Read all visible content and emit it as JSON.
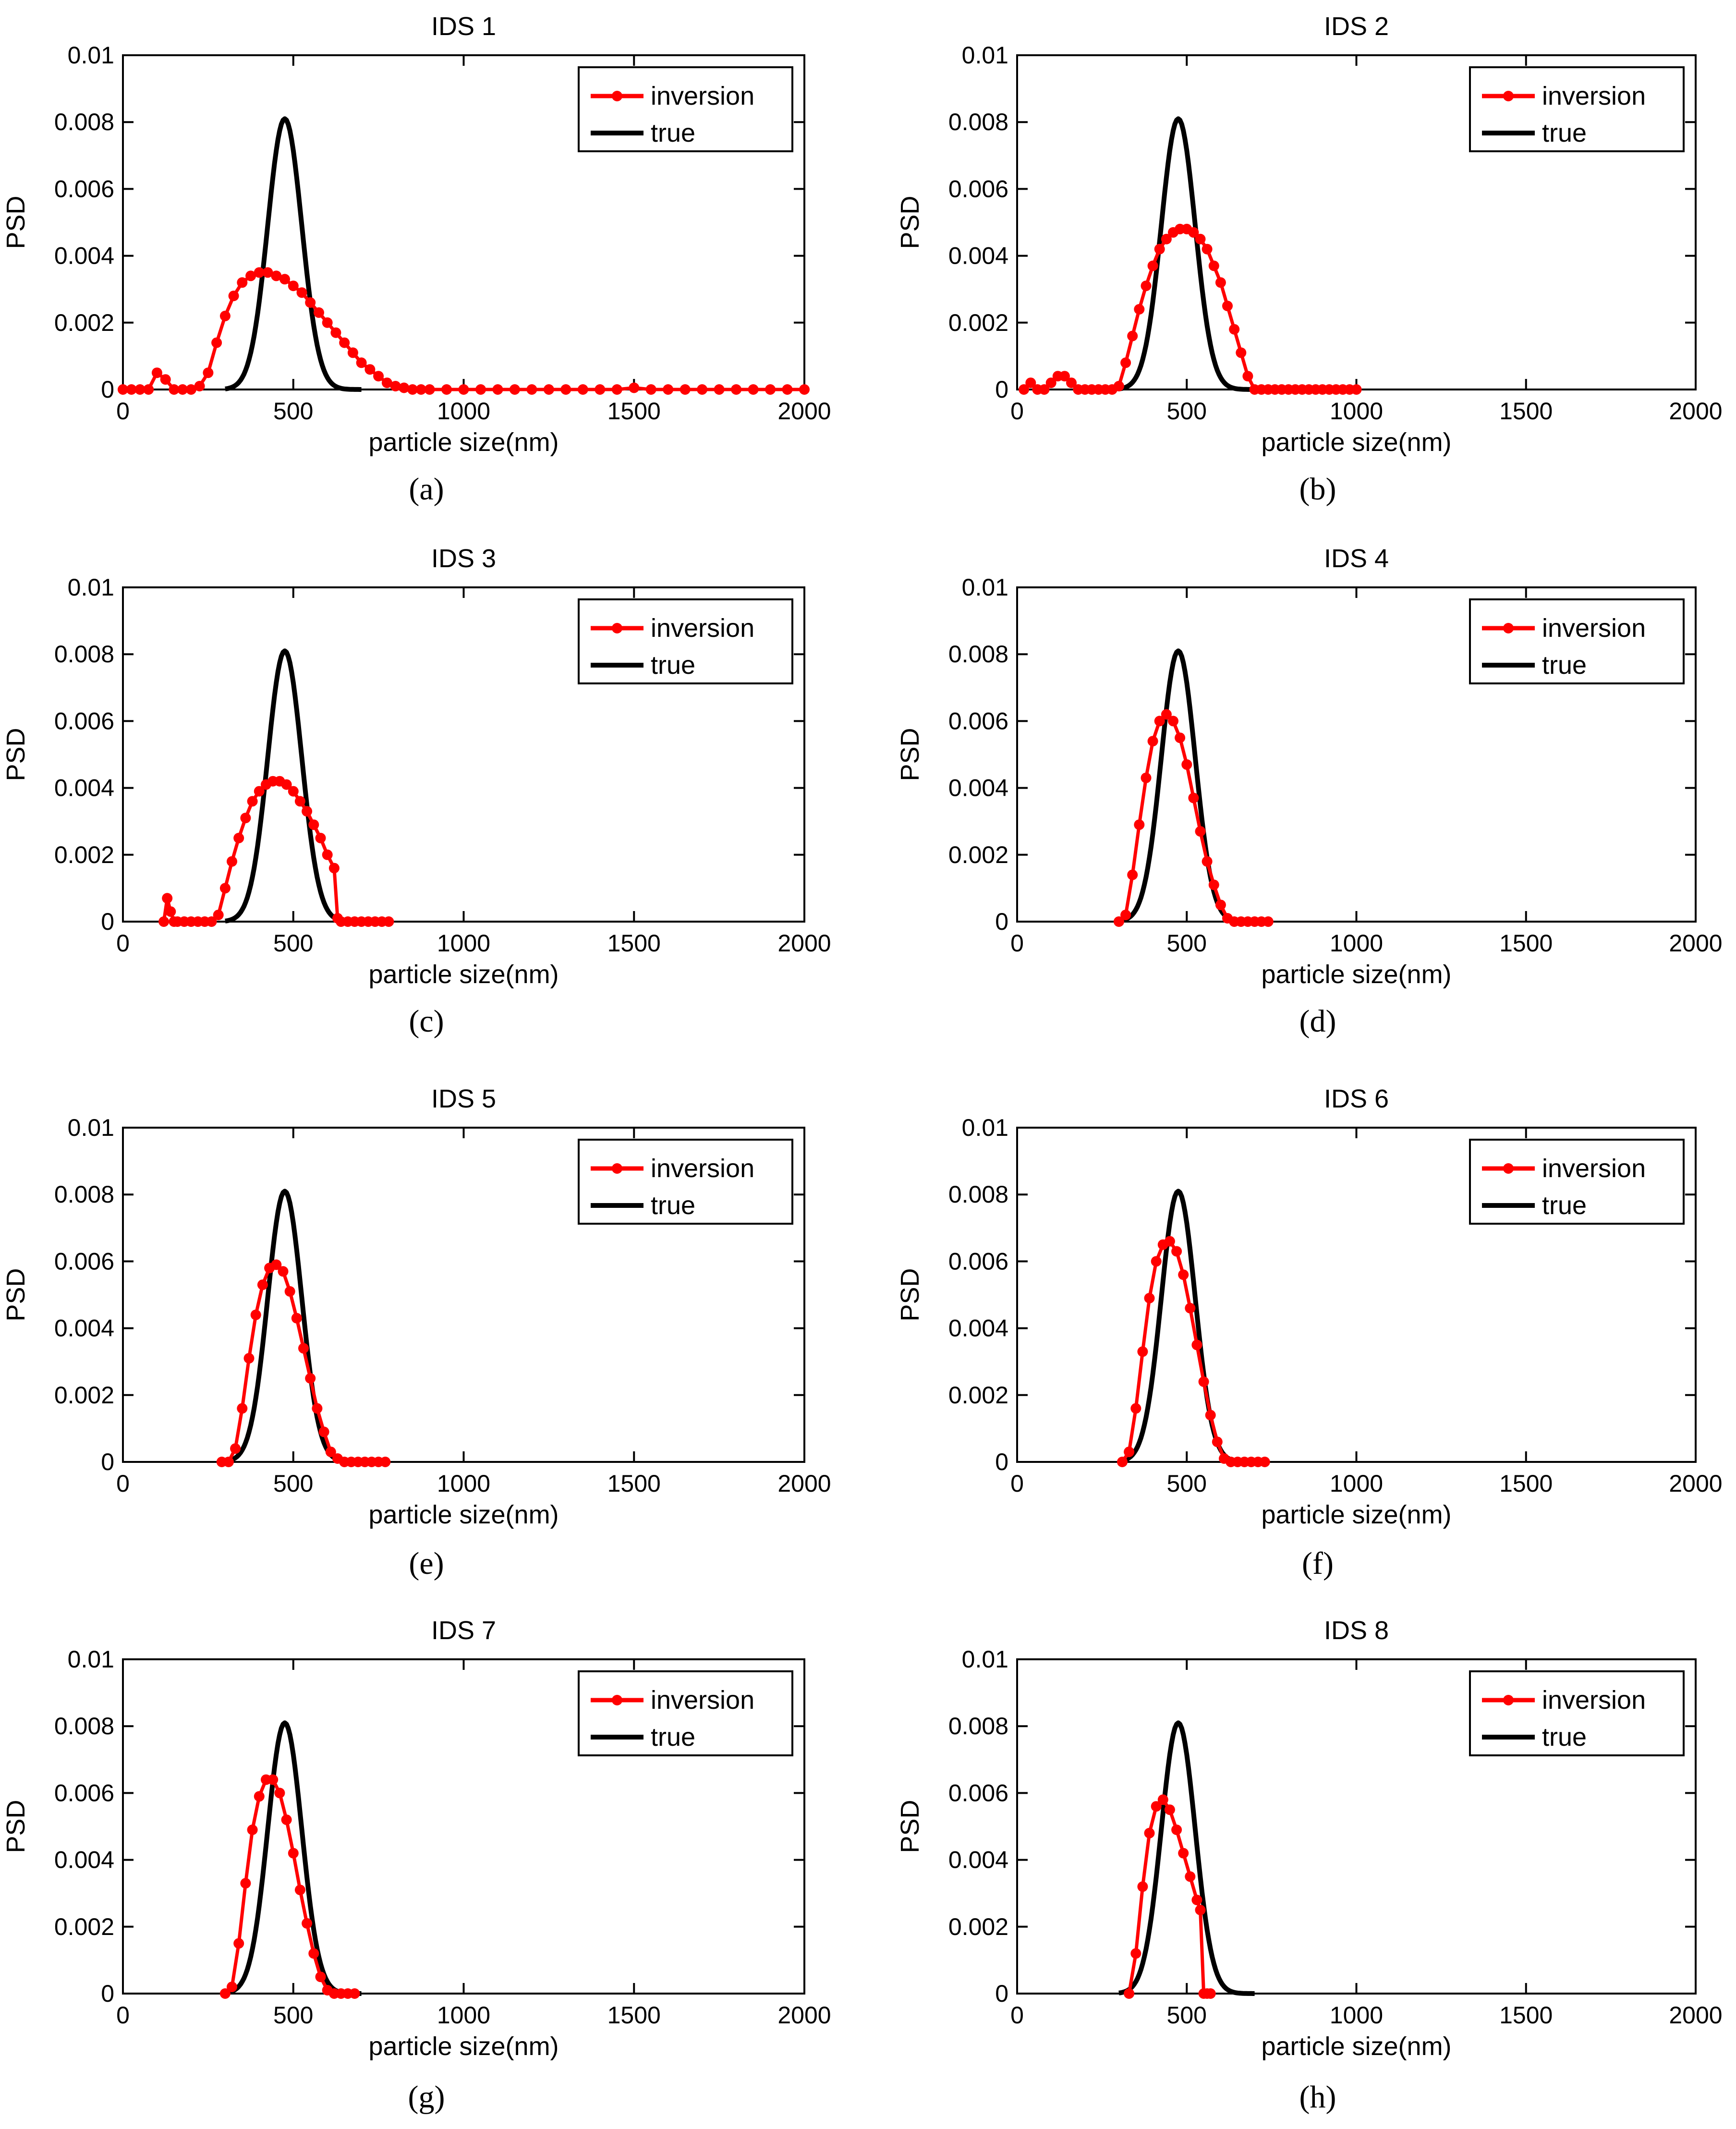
{
  "figure": {
    "panels_label": "IDS panels"
  },
  "chart_data": [
    {
      "type": "line",
      "panel": "a",
      "title": "IDS 1",
      "xlabel": "particle size(nm)",
      "ylabel": "PSD",
      "xlim": [
        0,
        2000
      ],
      "ylim": [
        0,
        0.01
      ],
      "xticks": [
        "0",
        "500",
        "1000",
        "1500",
        "2000"
      ],
      "yticks": [
        "0",
        "0.002",
        "0.004",
        "0.006",
        "0.008",
        "0.01"
      ],
      "legend": [
        "inversion",
        "true"
      ],
      "colors": {
        "inversion": "#ff0000",
        "true": "#000000"
      },
      "true_range": [
        300,
        700
      ],
      "inversion": {
        "x": [
          0,
          25,
          50,
          75,
          100,
          125,
          150,
          175,
          200,
          225,
          250,
          275,
          300,
          325,
          350,
          375,
          400,
          425,
          450,
          475,
          500,
          525,
          550,
          575,
          600,
          625,
          650,
          675,
          700,
          725,
          750,
          775,
          800,
          825,
          850,
          875,
          900,
          950,
          1000,
          1050,
          1100,
          1150,
          1200,
          1250,
          1300,
          1350,
          1400,
          1450,
          1500,
          1550,
          1600,
          1650,
          1700,
          1750,
          1800,
          1850,
          1900,
          1950,
          2000
        ],
        "y": [
          0,
          0,
          0,
          0,
          0.0005,
          0.0003,
          0,
          0,
          0,
          0.0001,
          0.0005,
          0.0014,
          0.0022,
          0.0028,
          0.0032,
          0.0034,
          0.0035,
          0.0035,
          0.0034,
          0.0033,
          0.0031,
          0.0029,
          0.0026,
          0.0023,
          0.002,
          0.0017,
          0.0014,
          0.0011,
          0.0008,
          0.0006,
          0.0004,
          0.0002,
          0.0001,
          5e-05,
          0,
          0,
          0,
          0,
          0,
          0,
          0,
          0,
          0,
          0,
          0,
          0,
          0,
          0,
          5e-05,
          0,
          0,
          0,
          0,
          0,
          0,
          0,
          0,
          0,
          0
        ]
      }
    },
    {
      "type": "line",
      "panel": "b",
      "title": "IDS 2",
      "xlabel": "particle size(nm)",
      "ylabel": "PSD",
      "xlim": [
        0,
        2000
      ],
      "ylim": [
        0,
        0.01
      ],
      "xticks": [
        "0",
        "500",
        "1000",
        "1500",
        "2000"
      ],
      "yticks": [
        "0",
        "0.002",
        "0.004",
        "0.006",
        "0.008",
        "0.01"
      ],
      "legend": [
        "inversion",
        "true"
      ],
      "colors": {
        "inversion": "#ff0000",
        "true": "#000000"
      },
      "true_range": [
        300,
        700
      ],
      "inversion": {
        "x": [
          20,
          40,
          60,
          80,
          100,
          120,
          140,
          160,
          180,
          200,
          220,
          240,
          260,
          280,
          300,
          320,
          340,
          360,
          380,
          400,
          420,
          440,
          460,
          480,
          500,
          520,
          540,
          560,
          580,
          600,
          620,
          640,
          660,
          680,
          700,
          720,
          740,
          760,
          780,
          800,
          820,
          840,
          860,
          880,
          900,
          920,
          940,
          960,
          980,
          1000
        ],
        "y": [
          0,
          0.0002,
          0,
          0,
          0.0002,
          0.0004,
          0.0004,
          0.0002,
          0,
          0,
          0,
          0,
          0,
          0,
          0.0001,
          0.0008,
          0.0016,
          0.0024,
          0.0031,
          0.0037,
          0.0042,
          0.0045,
          0.0047,
          0.0048,
          0.0048,
          0.0047,
          0.0045,
          0.0042,
          0.0037,
          0.0032,
          0.0025,
          0.0018,
          0.0011,
          0.0004,
          0,
          0,
          0,
          0,
          0,
          0,
          0,
          0,
          0,
          0,
          0,
          0,
          0,
          0,
          0,
          0
        ]
      }
    },
    {
      "type": "line",
      "panel": "c",
      "title": "IDS 3",
      "xlabel": "particle size(nm)",
      "ylabel": "PSD",
      "xlim": [
        0,
        2000
      ],
      "ylim": [
        0,
        0.01
      ],
      "xticks": [
        "0",
        "500",
        "1000",
        "1500",
        "2000"
      ],
      "yticks": [
        "0",
        "0.002",
        "0.004",
        "0.006",
        "0.008",
        "0.01"
      ],
      "legend": [
        "inversion",
        "true"
      ],
      "colors": {
        "inversion": "#ff0000",
        "true": "#000000"
      },
      "true_range": [
        300,
        700
      ],
      "inversion": {
        "x": [
          120,
          130,
          140,
          150,
          160,
          180,
          200,
          220,
          240,
          260,
          280,
          300,
          320,
          340,
          360,
          380,
          400,
          420,
          440,
          460,
          480,
          500,
          520,
          540,
          560,
          580,
          600,
          620,
          630,
          640,
          660,
          680,
          700,
          720,
          740,
          760,
          780
        ],
        "y": [
          0,
          0.0007,
          0.0003,
          0,
          0,
          0,
          0,
          0,
          0,
          0,
          0.0002,
          0.001,
          0.0018,
          0.0025,
          0.0031,
          0.0036,
          0.0039,
          0.0041,
          0.0042,
          0.0042,
          0.0041,
          0.0039,
          0.0036,
          0.0033,
          0.0029,
          0.0025,
          0.002,
          0.0016,
          0.0001,
          0,
          0,
          0,
          0,
          0,
          0,
          0,
          0
        ]
      }
    },
    {
      "type": "line",
      "panel": "d",
      "title": "IDS 4",
      "xlabel": "particle size(nm)",
      "ylabel": "PSD",
      "xlim": [
        0,
        2000
      ],
      "ylim": [
        0,
        0.01
      ],
      "xticks": [
        "0",
        "500",
        "1000",
        "1500",
        "2000"
      ],
      "yticks": [
        "0",
        "0.002",
        "0.004",
        "0.006",
        "0.008",
        "0.01"
      ],
      "legend": [
        "inversion",
        "true"
      ],
      "colors": {
        "inversion": "#ff0000",
        "true": "#000000"
      },
      "true_range": [
        300,
        700
      ],
      "inversion": {
        "x": [
          300,
          320,
          340,
          360,
          380,
          400,
          420,
          440,
          460,
          480,
          500,
          520,
          540,
          560,
          580,
          600,
          620,
          640,
          660,
          680,
          700,
          720,
          740
        ],
        "y": [
          0,
          0.0002,
          0.0014,
          0.0029,
          0.0043,
          0.0054,
          0.006,
          0.0062,
          0.006,
          0.0055,
          0.0047,
          0.0037,
          0.0027,
          0.0018,
          0.0011,
          0.0005,
          0.0001,
          0,
          0,
          0,
          0,
          0,
          0
        ]
      }
    },
    {
      "type": "line",
      "panel": "e",
      "title": "IDS 5",
      "xlabel": "particle size(nm)",
      "ylabel": "PSD",
      "xlim": [
        0,
        2000
      ],
      "ylim": [
        0,
        0.01
      ],
      "xticks": [
        "0",
        "500",
        "1000",
        "1500",
        "2000"
      ],
      "yticks": [
        "0",
        "0.002",
        "0.004",
        "0.006",
        "0.008",
        "0.01"
      ],
      "legend": [
        "inversion",
        "true"
      ],
      "colors": {
        "inversion": "#ff0000",
        "true": "#000000"
      },
      "true_range": [
        300,
        700
      ],
      "inversion": {
        "x": [
          290,
          310,
          330,
          350,
          370,
          390,
          410,
          430,
          450,
          470,
          490,
          510,
          530,
          550,
          570,
          590,
          610,
          630,
          650,
          670,
          690,
          710,
          730,
          750,
          770
        ],
        "y": [
          0,
          0,
          0.0004,
          0.0016,
          0.0031,
          0.0044,
          0.0053,
          0.0058,
          0.0059,
          0.0057,
          0.0051,
          0.0043,
          0.0034,
          0.0025,
          0.0016,
          0.0009,
          0.0003,
          0.0001,
          0,
          0,
          0,
          0,
          0,
          0,
          0
        ]
      }
    },
    {
      "type": "line",
      "panel": "f",
      "title": "IDS 6",
      "xlabel": "particle size(nm)",
      "ylabel": "PSD",
      "xlim": [
        0,
        2000
      ],
      "ylim": [
        0,
        0.01
      ],
      "xticks": [
        "0",
        "500",
        "1000",
        "1500",
        "2000"
      ],
      "yticks": [
        "0",
        "0.002",
        "0.004",
        "0.006",
        "0.008",
        "0.01"
      ],
      "legend": [
        "inversion",
        "true"
      ],
      "colors": {
        "inversion": "#ff0000",
        "true": "#000000"
      },
      "true_range": [
        300,
        700
      ],
      "inversion": {
        "x": [
          310,
          330,
          350,
          370,
          390,
          410,
          430,
          450,
          470,
          490,
          510,
          530,
          550,
          570,
          590,
          610,
          630,
          650,
          670,
          690,
          710,
          730
        ],
        "y": [
          0,
          0.0003,
          0.0016,
          0.0033,
          0.0049,
          0.006,
          0.0065,
          0.0066,
          0.0063,
          0.0056,
          0.0046,
          0.0035,
          0.0024,
          0.0014,
          0.0006,
          0.0001,
          0,
          0,
          0,
          0,
          0,
          0
        ]
      }
    },
    {
      "type": "line",
      "panel": "g",
      "title": "IDS 7",
      "xlabel": "particle size(nm)",
      "ylabel": "PSD",
      "xlim": [
        0,
        2000
      ],
      "ylim": [
        0,
        0.01
      ],
      "xticks": [
        "0",
        "500",
        "1000",
        "1500",
        "2000"
      ],
      "yticks": [
        "0",
        "0.002",
        "0.004",
        "0.006",
        "0.008",
        "0.01"
      ],
      "legend": [
        "inversion",
        "true"
      ],
      "colors": {
        "inversion": "#ff0000",
        "true": "#000000"
      },
      "true_range": [
        300,
        700
      ],
      "inversion": {
        "x": [
          300,
          320,
          340,
          360,
          380,
          400,
          420,
          440,
          460,
          480,
          500,
          520,
          540,
          560,
          580,
          600,
          620,
          640,
          660,
          680
        ],
        "y": [
          0,
          0.0002,
          0.0015,
          0.0033,
          0.0049,
          0.0059,
          0.0064,
          0.0064,
          0.006,
          0.0052,
          0.0042,
          0.0031,
          0.0021,
          0.0012,
          0.0005,
          0.0001,
          0,
          0,
          0,
          0
        ]
      }
    },
    {
      "type": "line",
      "panel": "h",
      "title": "IDS 8",
      "xlabel": "particle size(nm)",
      "ylabel": "PSD",
      "xlim": [
        0,
        2000
      ],
      "ylim": [
        0,
        0.01
      ],
      "xticks": [
        "0",
        "500",
        "1000",
        "1500",
        "2000"
      ],
      "yticks": [
        "0",
        "0.002",
        "0.004",
        "0.006",
        "0.008",
        "0.01"
      ],
      "legend": [
        "inversion",
        "true"
      ],
      "colors": {
        "inversion": "#ff0000",
        "true": "#000000"
      },
      "true_range": [
        300,
        700
      ],
      "inversion": {
        "x": [
          330,
          350,
          370,
          390,
          410,
          430,
          450,
          470,
          490,
          510,
          530,
          540,
          550,
          560,
          570
        ],
        "y": [
          0,
          0.0012,
          0.0032,
          0.0048,
          0.0056,
          0.0058,
          0.0055,
          0.0049,
          0.0042,
          0.0035,
          0.0028,
          0.0025,
          0,
          0,
          0
        ]
      }
    }
  ],
  "captions": [
    "(a)",
    "(b)",
    "(c)",
    "(d)",
    "(e)",
    "(f)",
    "(g)",
    "(h)"
  ]
}
